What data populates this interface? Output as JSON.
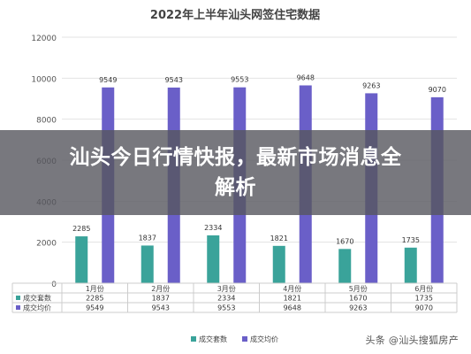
{
  "banner": {
    "headline": "汕头今日行情快报，最新市场消息全解析"
  },
  "watermark": "头条 @汕头搜狐房产",
  "colors": {
    "deals": "#3aa39a",
    "price": "#6a5fc8",
    "grid": "#e3e3e3",
    "axis_text": "#555555",
    "title": "#444444"
  },
  "chart_data": {
    "type": "bar",
    "title": "2022年上半年汕头网签住宅数据",
    "categories": [
      "1月份",
      "2月份",
      "3月份",
      "4月份",
      "5月份",
      "6月份"
    ],
    "series": [
      {
        "name": "成交套数",
        "values": [
          2285,
          1837,
          2334,
          1821,
          1670,
          1735
        ]
      },
      {
        "name": "成交均价",
        "values": [
          9549,
          9543,
          9553,
          9648,
          9263,
          9070
        ]
      }
    ],
    "yticks": [
      0,
      2000,
      4000,
      6000,
      8000,
      10000,
      12000
    ],
    "ylim": [
      0,
      12000
    ],
    "grid": true,
    "legend": "bottom",
    "data_table": true
  }
}
